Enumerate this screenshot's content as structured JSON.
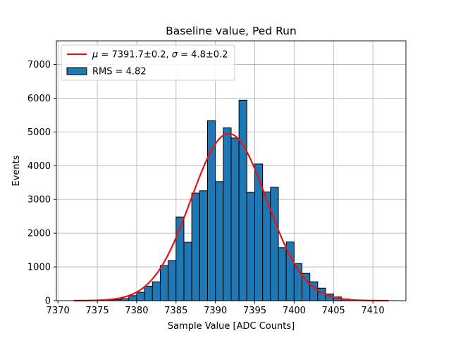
{
  "chart_data": {
    "type": "bar",
    "title": "Baseline value, Ped Run",
    "xlabel": "Sample Value [ADC Counts]",
    "ylabel": "Events",
    "xlim": [
      7369.8,
      7414.2
    ],
    "ylim": [
      0,
      7700
    ],
    "xticks": [
      7370,
      7375,
      7380,
      7385,
      7390,
      7395,
      7400,
      7405,
      7410
    ],
    "yticks": [
      0,
      1000,
      2000,
      3000,
      4000,
      5000,
      6000,
      7000
    ],
    "grid": true,
    "legend_position": "upper-left",
    "bin_width": 1,
    "bins": {
      "x_left": [
        7376,
        7377,
        7378,
        7379,
        7380,
        7381,
        7382,
        7383,
        7384,
        7385,
        7386,
        7387,
        7388,
        7389,
        7390,
        7391,
        7392,
        7393,
        7394,
        7395,
        7396,
        7397,
        7398,
        7399,
        7400,
        7401,
        7402,
        7403,
        7404,
        7405,
        7406,
        7407
      ],
      "counts": [
        10,
        30,
        60,
        150,
        250,
        430,
        560,
        1040,
        1190,
        2480,
        1730,
        3190,
        3260,
        5330,
        3530,
        5120,
        4820,
        5940,
        3210,
        4050,
        3220,
        3360,
        1570,
        1740,
        1100,
        810,
        560,
        370,
        200,
        110,
        50,
        20
      ]
    },
    "series": [
      {
        "name": "RMS = 4.82",
        "kind": "histogram",
        "color": "#1f77b4",
        "edge_color": "#000000"
      },
      {
        "name": "μ = 7391.7±0.2, σ = 4.8±0.2",
        "kind": "gaussian-fit",
        "color": "#ee1111",
        "mu": 7391.7,
        "sigma": 4.8,
        "amplitude": 4950,
        "x_range": [
          7372,
          7412
        ]
      }
    ],
    "legend": [
      {
        "label_parts": [
          "μ",
          " = 7391.7±0.2, ",
          "σ",
          " = 4.8±0.2"
        ],
        "type": "line",
        "color": "#ee1111"
      },
      {
        "label_parts": [
          "RMS = 4.82"
        ],
        "type": "patch",
        "color": "#1f77b4"
      }
    ]
  }
}
